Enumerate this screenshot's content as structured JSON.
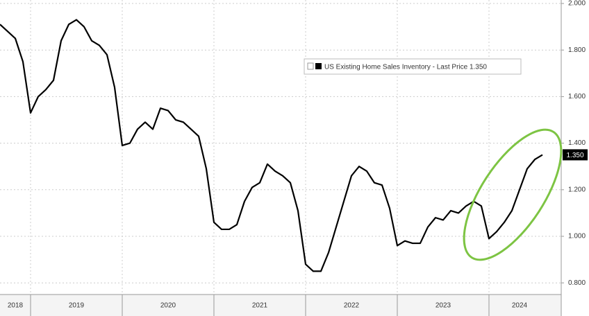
{
  "chart_data": {
    "type": "line",
    "categories": [
      null,
      null,
      "2018",
      null,
      null,
      null,
      null,
      null,
      null,
      null,
      "2019",
      null,
      null,
      null,
      null,
      null,
      null,
      null,
      null,
      null,
      null,
      null,
      "2020",
      null,
      null,
      null,
      null,
      null,
      null,
      null,
      null,
      null,
      null,
      null,
      "2021",
      null,
      null,
      null,
      null,
      null,
      null,
      null,
      null,
      null,
      null,
      null,
      "2022",
      null,
      null,
      null,
      null,
      null,
      null,
      null,
      null,
      null,
      null,
      null,
      "2023",
      null,
      null,
      null,
      null,
      null,
      null,
      null,
      null,
      null,
      "2024",
      null,
      null,
      null
    ],
    "series": [
      {
        "name": "US Existing Home Sales Inventory - Last Price 1.350",
        "color": "#000000",
        "values": [
          1.91,
          1.88,
          1.85,
          1.75,
          1.53,
          1.6,
          1.63,
          1.67,
          1.84,
          1.91,
          1.93,
          1.9,
          1.84,
          1.82,
          1.78,
          1.64,
          1.39,
          1.4,
          1.46,
          1.49,
          1.46,
          1.55,
          1.54,
          1.5,
          1.49,
          1.46,
          1.43,
          1.29,
          1.06,
          1.03,
          1.03,
          1.05,
          1.15,
          1.21,
          1.23,
          1.31,
          1.28,
          1.26,
          1.23,
          1.11,
          0.88,
          0.85,
          0.85,
          0.93,
          1.04,
          1.15,
          1.26,
          1.3,
          1.28,
          1.23,
          1.22,
          1.12,
          0.96,
          0.98,
          0.97,
          0.97,
          1.04,
          1.08,
          1.07,
          1.11,
          1.1,
          1.13,
          1.15,
          1.13,
          0.99,
          1.02,
          1.06,
          1.11,
          1.2,
          1.29,
          1.33,
          1.35
        ],
        "last_price": {
          "value": 1.35,
          "label": "1.350"
        }
      }
    ],
    "ylim": [
      0.75,
      2.0
    ],
    "yticks": [
      {
        "value": 0.8,
        "label": "0.800"
      },
      {
        "value": 1.0,
        "label": "1.000"
      },
      {
        "value": 1.2,
        "label": "1.200"
      },
      {
        "value": 1.4,
        "label": "1.400"
      },
      {
        "value": 1.6,
        "label": "1.600"
      },
      {
        "value": 1.8,
        "label": "1.800"
      },
      {
        "value": 2.0,
        "label": "2.000"
      }
    ],
    "grid": true
  }
}
